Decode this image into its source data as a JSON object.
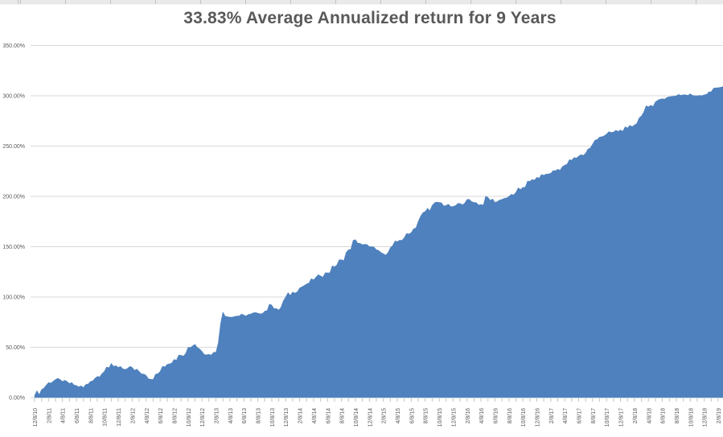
{
  "chart": {
    "title": "33.83% Average Annualized return for 9 Years",
    "colors": {
      "area_fill": "#4e81bd",
      "gridline": "#d9d9d9",
      "axis_text": "#595959",
      "tick": "#c0c0c0",
      "background": "#ffffff",
      "header_strip": "#e9e9e9",
      "header_strip_divider": "#c2c2c2"
    }
  },
  "chart_data": {
    "type": "area",
    "title": "33.83% Average Annualized return for 9 Years",
    "series_note": "cumulative return (%), monthly points read from plot, 12/8/10 through 2/8/19",
    "x_start": "12/8/10",
    "x_step_months": 1,
    "label_every_n_points": 2,
    "x_tick_labels": [
      "12/8/10",
      "2/8/11",
      "4/8/11",
      "6/8/11",
      "8/8/11",
      "10/8/11",
      "12/8/11",
      "2/8/12",
      "4/8/12",
      "6/8/12",
      "8/8/12",
      "10/8/12",
      "12/8/12",
      "2/8/13",
      "4/8/13",
      "6/8/13",
      "8/8/13",
      "10/8/13",
      "12/8/13",
      "2/8/14",
      "4/8/14",
      "6/8/14",
      "8/8/14",
      "10/8/14",
      "12/8/14",
      "2/8/15",
      "4/8/15",
      "6/8/15",
      "8/8/15",
      "10/8/15",
      "12/8/15",
      "2/8/16",
      "4/8/16",
      "6/8/16",
      "8/8/16",
      "10/8/16",
      "12/8/16",
      "2/8/17",
      "4/8/17",
      "6/8/17",
      "8/8/17",
      "10/8/17",
      "12/8/17",
      "2/8/18",
      "4/8/18",
      "6/8/18",
      "8/8/18",
      "10/8/18",
      "12/8/18",
      "2/8/19"
    ],
    "values": [
      2,
      8,
      15,
      18,
      16,
      14,
      12,
      10,
      16,
      21,
      26,
      34,
      30,
      28,
      30,
      26,
      22,
      18,
      26,
      33,
      38,
      42,
      50,
      53,
      46,
      43,
      45,
      85,
      80,
      81,
      82,
      83,
      84,
      86,
      92,
      87,
      100,
      105,
      109,
      113,
      117,
      121,
      124,
      130,
      137,
      147,
      157,
      152,
      150,
      147,
      143,
      149,
      155,
      159,
      164,
      175,
      185,
      191,
      194,
      191,
      190,
      193,
      197,
      194,
      192,
      199,
      194,
      197,
      200,
      204,
      209,
      215,
      219,
      221,
      223,
      227,
      231,
      236,
      240,
      243,
      252,
      259,
      262,
      264,
      266,
      268,
      271,
      280,
      289,
      294,
      297,
      299,
      300,
      301,
      302,
      300,
      301,
      304,
      308
    ],
    "y_axis": {
      "min": 0,
      "max": 350,
      "tick_labels": [
        "0.00%",
        "50.00%",
        "100.00%",
        "150.00%",
        "200.00%",
        "250.00%",
        "300.00%",
        "350.00%"
      ]
    },
    "grid": "horizontal",
    "legend": "none"
  }
}
